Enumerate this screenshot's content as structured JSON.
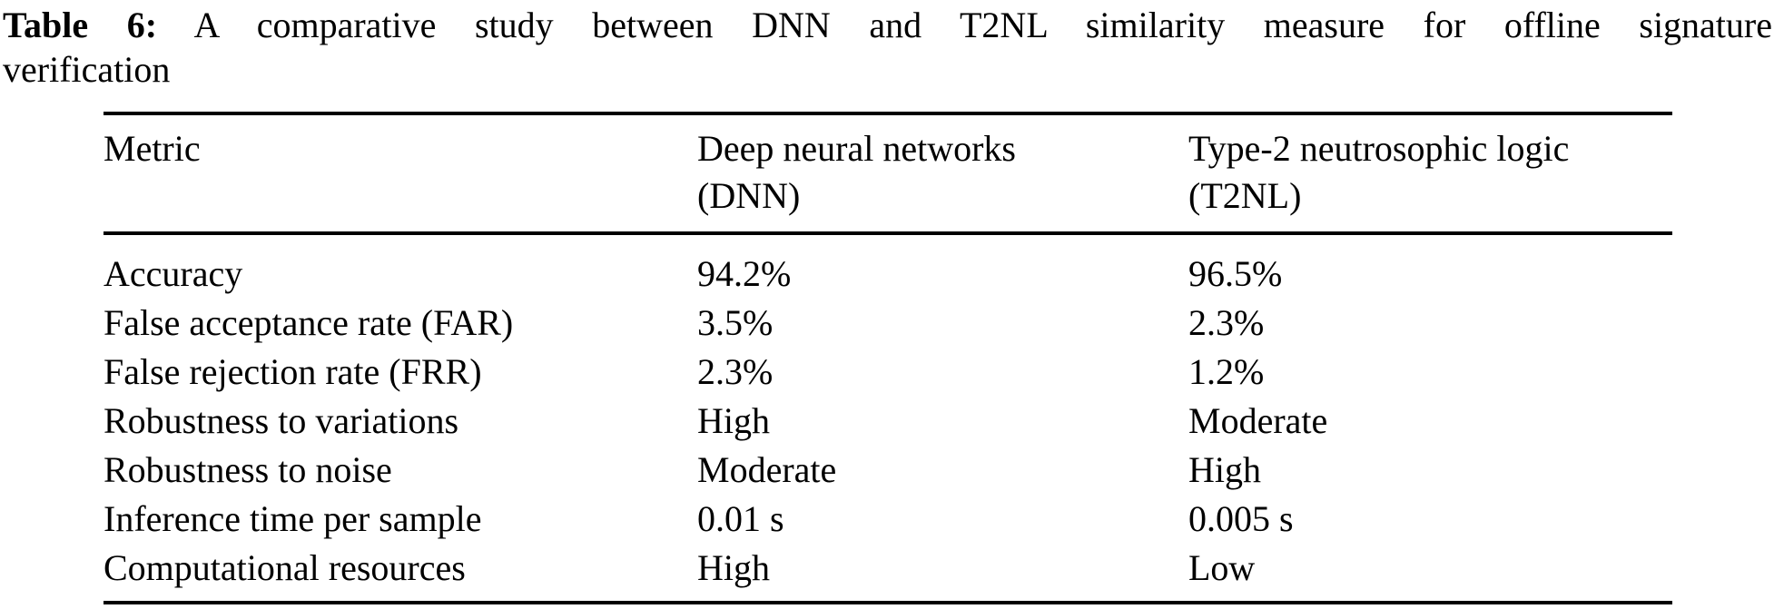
{
  "caption": {
    "label": "Table 6:",
    "line1": "A comparative study between DNN and T2NL similarity measure for offline signature",
    "line2": "verification"
  },
  "table": {
    "headers": [
      "Metric",
      "Deep neural networks\n(DNN)",
      "Type-2 neutrosophic logic\n(T2NL)"
    ],
    "rows": [
      {
        "metric": "Accuracy",
        "dnn": "94.2%",
        "t2nl": "96.5%"
      },
      {
        "metric": "False acceptance rate (FAR)",
        "dnn": "3.5%",
        "t2nl": "2.3%"
      },
      {
        "metric": "False rejection rate (FRR)",
        "dnn": "2.3%",
        "t2nl": "1.2%"
      },
      {
        "metric": "Robustness to variations",
        "dnn": "High",
        "t2nl": "Moderate"
      },
      {
        "metric": "Robustness to noise",
        "dnn": "Moderate",
        "t2nl": "High"
      },
      {
        "metric": "Inference time per sample",
        "dnn": "0.01 s",
        "t2nl": "0.005 s"
      },
      {
        "metric": "Computational resources",
        "dnn": "High",
        "t2nl": "Low"
      }
    ]
  },
  "colors": {
    "text": "#000000",
    "background": "#ffffff",
    "rule": "#000000"
  }
}
